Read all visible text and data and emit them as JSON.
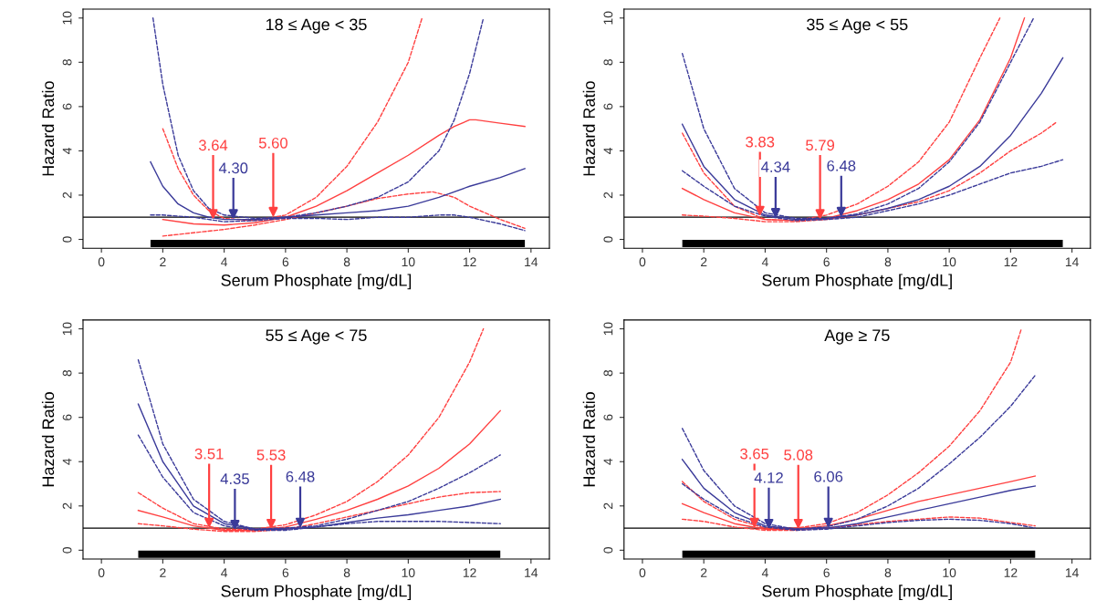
{
  "chart_data": [
    {
      "type": "line",
      "title": "18 ≤ Age < 35",
      "xlabel": "Serum Phosphate [mg/dL]",
      "ylabel": "Hazard Ratio",
      "xlim": [
        -0.6,
        14.6
      ],
      "ylim": [
        -0.4,
        10.4
      ],
      "xticks": [
        0,
        2,
        4,
        6,
        8,
        10,
        12,
        14
      ],
      "yticks": [
        0,
        2,
        4,
        6,
        8,
        10
      ],
      "grid": false,
      "series": [
        {
          "color": "#ff4040",
          "line_style": "solid",
          "x": [
            2,
            3,
            4,
            5,
            6,
            7,
            8,
            9,
            10,
            11,
            11.5,
            12,
            12.2,
            13,
            13.8
          ],
          "values": [
            0.9,
            0.7,
            0.65,
            0.75,
            1.0,
            1.5,
            2.2,
            3.0,
            3.8,
            4.7,
            5.1,
            5.4,
            5.4,
            5.25,
            5.1
          ]
        },
        {
          "color": "#ff4040",
          "line_style": "dashed",
          "x": [
            2,
            2.5,
            3,
            3.5,
            4,
            5,
            6,
            7,
            8,
            9,
            10,
            10.45
          ],
          "values": [
            5.0,
            3.2,
            2.0,
            1.3,
            0.95,
            0.85,
            1.1,
            1.9,
            3.3,
            5.3,
            8.0,
            10
          ]
        },
        {
          "color": "#ff4040",
          "line_style": "dashed",
          "x": [
            2,
            3,
            4,
            5,
            6,
            7,
            8,
            9,
            10,
            10.8,
            11.5,
            12,
            13,
            13.8
          ],
          "values": [
            0.15,
            0.3,
            0.45,
            0.65,
            0.9,
            1.2,
            1.5,
            1.85,
            2.05,
            2.15,
            1.9,
            1.5,
            0.9,
            0.5
          ]
        },
        {
          "color": "#3a3a99",
          "line_style": "solid",
          "x": [
            1.6,
            2,
            2.5,
            3,
            3.5,
            4,
            5,
            6,
            7,
            8,
            9,
            10,
            11,
            12,
            13,
            13.8
          ],
          "values": [
            3.5,
            2.4,
            1.6,
            1.2,
            1.0,
            0.9,
            0.9,
            1.0,
            1.1,
            1.2,
            1.3,
            1.5,
            1.9,
            2.4,
            2.8,
            3.2
          ]
        },
        {
          "color": "#3a3a99",
          "line_style": "dashed",
          "x": [
            1.68,
            2,
            2.5,
            3,
            3.5,
            4,
            5,
            6,
            7,
            8,
            9,
            10,
            11,
            11.5,
            12,
            12.45
          ],
          "values": [
            10,
            7,
            3.8,
            2.2,
            1.4,
            1.1,
            0.95,
            1.0,
            1.2,
            1.5,
            1.9,
            2.6,
            4.0,
            5.4,
            7.5,
            10
          ]
        },
        {
          "color": "#3a3a99",
          "line_style": "dashed",
          "x": [
            1.6,
            2,
            3,
            4,
            5,
            6,
            7,
            8,
            9,
            10,
            11,
            11.5,
            12,
            13,
            13.8
          ],
          "values": [
            1.1,
            1.1,
            1.0,
            0.8,
            0.85,
            0.95,
            0.95,
            0.9,
            1.0,
            1.0,
            1.1,
            1.1,
            1.0,
            0.7,
            0.4
          ]
        }
      ],
      "ref_lines": [
        {
          "axis": "y",
          "value": 1,
          "color": "#000000"
        }
      ],
      "annotations": [
        {
          "text": "3.64",
          "x": 3.64,
          "y": 0.9
        },
        {
          "text": "4.30",
          "x": 4.3,
          "y": 0.9
        },
        {
          "text": "5.60",
          "x": 5.6,
          "y": 1.0
        }
      ]
    },
    {
      "type": "line",
      "title": "35 ≤ Age < 55",
      "xlabel": "Serum Phosphate [mg/dL]",
      "ylabel": "Hazard Ratio",
      "xlim": [
        -0.6,
        14.6
      ],
      "ylim": [
        -0.4,
        10.4
      ],
      "xticks": [
        0,
        2,
        4,
        6,
        8,
        10,
        12,
        14
      ],
      "yticks": [
        0,
        2,
        4,
        6,
        8,
        10
      ],
      "grid": false,
      "series": [
        {
          "color": "#ff4040",
          "line_style": "solid",
          "x": [
            1.3,
            2,
            3,
            4,
            5,
            6,
            7,
            8,
            9,
            10,
            11,
            12,
            12.45
          ],
          "values": [
            2.3,
            1.8,
            1.2,
            0.9,
            0.85,
            0.95,
            1.3,
            1.8,
            2.5,
            3.6,
            5.4,
            8.2,
            10
          ]
        },
        {
          "color": "#ff4040",
          "line_style": "dashed",
          "x": [
            1.3,
            2,
            3,
            4,
            5,
            6,
            7,
            8,
            9,
            10,
            11,
            11.65
          ],
          "values": [
            4.8,
            3.0,
            1.5,
            0.9,
            0.85,
            1.1,
            1.6,
            2.4,
            3.5,
            5.3,
            8.2,
            10
          ]
        },
        {
          "color": "#ff4040",
          "line_style": "dashed",
          "x": [
            1.3,
            2,
            3,
            4,
            5,
            6,
            7,
            8,
            9,
            10,
            11,
            12,
            13,
            13.5
          ],
          "values": [
            1.1,
            1.05,
            0.95,
            0.8,
            0.8,
            0.9,
            1.1,
            1.4,
            1.7,
            2.2,
            3.0,
            4.0,
            4.8,
            5.3
          ]
        },
        {
          "color": "#3a3a99",
          "line_style": "solid",
          "x": [
            1.3,
            2,
            3,
            4,
            5,
            6,
            7,
            8,
            9,
            10,
            11,
            12,
            13,
            13.7
          ],
          "values": [
            5.2,
            3.3,
            1.8,
            1.1,
            0.9,
            0.95,
            1.1,
            1.4,
            1.8,
            2.4,
            3.3,
            4.7,
            6.6,
            8.2
          ]
        },
        {
          "color": "#3a3a99",
          "line_style": "dashed",
          "x": [
            1.3,
            2,
            3,
            4,
            5,
            6,
            7,
            8,
            9,
            10,
            11,
            12,
            12.75
          ],
          "values": [
            8.4,
            5.0,
            2.3,
            1.2,
            0.95,
            0.95,
            1.15,
            1.6,
            2.3,
            3.5,
            5.3,
            8.0,
            10
          ]
        },
        {
          "color": "#3a3a99",
          "line_style": "dashed",
          "x": [
            1.3,
            2,
            3,
            4,
            5,
            6,
            7,
            8,
            9,
            10,
            11,
            12,
            13,
            13.7
          ],
          "values": [
            3.1,
            2.4,
            1.5,
            1.05,
            0.85,
            0.9,
            1.0,
            1.3,
            1.6,
            2.0,
            2.5,
            3.0,
            3.3,
            3.6
          ]
        }
      ],
      "ref_lines": [
        {
          "axis": "y",
          "value": 1,
          "color": "#000000"
        }
      ],
      "annotations": [
        {
          "text": "3.83",
          "x": 3.83,
          "y": 1.05
        },
        {
          "text": "4.34",
          "x": 4.34,
          "y": 0.95
        },
        {
          "text": "5.79",
          "x": 5.79,
          "y": 0.9
        },
        {
          "text": "6.48",
          "x": 6.48,
          "y": 1.0
        }
      ]
    },
    {
      "type": "line",
      "title": "55 ≤ Age < 75",
      "xlabel": "Serum Phosphate [mg/dL]",
      "ylabel": "Hazard Ratio",
      "xlim": [
        -0.6,
        14.6
      ],
      "ylim": [
        -0.4,
        10.4
      ],
      "xticks": [
        0,
        2,
        4,
        6,
        8,
        10,
        12,
        14
      ],
      "yticks": [
        0,
        2,
        4,
        6,
        8,
        10
      ],
      "grid": false,
      "series": [
        {
          "color": "#ff4040",
          "line_style": "solid",
          "x": [
            1.2,
            2,
            3,
            4,
            5,
            6,
            7,
            8,
            9,
            10,
            11,
            12,
            13
          ],
          "values": [
            1.8,
            1.5,
            1.1,
            0.9,
            0.9,
            1.05,
            1.4,
            1.8,
            2.3,
            2.9,
            3.7,
            4.8,
            6.3
          ]
        },
        {
          "color": "#ff4040",
          "line_style": "dashed",
          "x": [
            1.2,
            2,
            3,
            4,
            5,
            6,
            7,
            8,
            9,
            10,
            11,
            12,
            12.45
          ],
          "values": [
            2.6,
            1.9,
            1.2,
            0.95,
            0.95,
            1.15,
            1.6,
            2.2,
            3.1,
            4.3,
            6.0,
            8.5,
            10
          ]
        },
        {
          "color": "#ff4040",
          "line_style": "dashed",
          "x": [
            1.2,
            2,
            3,
            4,
            5,
            6,
            7,
            8,
            9,
            10,
            11,
            12,
            13
          ],
          "values": [
            1.2,
            1.1,
            0.95,
            0.85,
            0.85,
            0.95,
            1.2,
            1.5,
            1.8,
            2.1,
            2.4,
            2.6,
            2.65
          ]
        },
        {
          "color": "#3a3a99",
          "line_style": "solid",
          "x": [
            1.2,
            2,
            3,
            4,
            5,
            6,
            7,
            8,
            9,
            10,
            11,
            12,
            13
          ],
          "values": [
            6.6,
            4.0,
            2.0,
            1.2,
            0.95,
            0.95,
            1.05,
            1.25,
            1.45,
            1.6,
            1.8,
            2.0,
            2.3
          ]
        },
        {
          "color": "#3a3a99",
          "line_style": "dashed",
          "x": [
            1.2,
            2,
            3,
            4,
            5,
            6,
            7,
            8,
            9,
            10,
            11,
            12,
            13
          ],
          "values": [
            8.6,
            4.8,
            2.3,
            1.3,
            0.95,
            1.0,
            1.1,
            1.4,
            1.8,
            2.2,
            2.8,
            3.5,
            4.3
          ]
        },
        {
          "color": "#3a3a99",
          "line_style": "dashed",
          "x": [
            1.2,
            2,
            3,
            4,
            5,
            6,
            7,
            8,
            9,
            10,
            11,
            12,
            13
          ],
          "values": [
            5.2,
            3.3,
            1.7,
            1.1,
            0.9,
            0.9,
            1.05,
            1.2,
            1.3,
            1.3,
            1.3,
            1.25,
            1.2
          ]
        }
      ],
      "ref_lines": [
        {
          "axis": "y",
          "value": 1,
          "color": "#000000"
        }
      ],
      "annotations": [
        {
          "text": "3.51",
          "x": 3.51,
          "y": 1.0
        },
        {
          "text": "4.35",
          "x": 4.35,
          "y": 0.9
        },
        {
          "text": "5.53",
          "x": 5.53,
          "y": 0.95
        },
        {
          "text": "6.48",
          "x": 6.48,
          "y": 1.0
        }
      ]
    },
    {
      "type": "line",
      "title": "Age ≥ 75",
      "xlabel": "Serum Phosphate [mg/dL]",
      "ylabel": "Hazard Ratio",
      "xlim": [
        -0.6,
        14.6
      ],
      "ylim": [
        -0.4,
        10.4
      ],
      "xticks": [
        0,
        2,
        4,
        6,
        8,
        10,
        12,
        14
      ],
      "yticks": [
        0,
        2,
        4,
        6,
        8,
        10
      ],
      "grid": false,
      "series": [
        {
          "color": "#ff4040",
          "line_style": "solid",
          "x": [
            1.3,
            2,
            3,
            4,
            5,
            6,
            7,
            8,
            9,
            10,
            11,
            12,
            12.8
          ],
          "values": [
            2.1,
            1.7,
            1.2,
            0.95,
            0.95,
            1.1,
            1.4,
            1.8,
            2.2,
            2.5,
            2.8,
            3.1,
            3.35
          ]
        },
        {
          "color": "#ff4040",
          "line_style": "dashed",
          "x": [
            1.3,
            2,
            3,
            4,
            5,
            6,
            7,
            8,
            9,
            10,
            11,
            12,
            12.35
          ],
          "values": [
            3.1,
            2.2,
            1.4,
            1.0,
            1.0,
            1.2,
            1.7,
            2.5,
            3.5,
            4.7,
            6.3,
            8.5,
            10
          ]
        },
        {
          "color": "#ff4040",
          "line_style": "dashed",
          "x": [
            1.3,
            2,
            3,
            4,
            5,
            6,
            7,
            8,
            9,
            10,
            11,
            12,
            12.8
          ],
          "values": [
            1.4,
            1.3,
            1.05,
            0.9,
            0.9,
            1.0,
            1.15,
            1.3,
            1.4,
            1.5,
            1.45,
            1.25,
            1.1
          ]
        },
        {
          "color": "#3a3a99",
          "line_style": "solid",
          "x": [
            1.3,
            2,
            3,
            4,
            5,
            6,
            7,
            8,
            9,
            10,
            11,
            12,
            12.8
          ],
          "values": [
            4.1,
            2.8,
            1.7,
            1.1,
            0.95,
            1.0,
            1.2,
            1.5,
            1.8,
            2.1,
            2.4,
            2.7,
            2.9
          ]
        },
        {
          "color": "#3a3a99",
          "line_style": "dashed",
          "x": [
            1.3,
            2,
            3,
            4,
            5,
            6,
            7,
            8,
            9,
            10,
            11,
            12,
            12.8
          ],
          "values": [
            5.5,
            3.6,
            2.0,
            1.2,
            0.95,
            1.05,
            1.4,
            2.0,
            2.8,
            3.9,
            5.1,
            6.5,
            7.9
          ]
        },
        {
          "color": "#3a3a99",
          "line_style": "dashed",
          "x": [
            1.3,
            2,
            3,
            4,
            5,
            6,
            7,
            8,
            9,
            10,
            11,
            12,
            12.8
          ],
          "values": [
            3.0,
            2.3,
            1.5,
            1.05,
            0.9,
            0.95,
            1.1,
            1.25,
            1.35,
            1.4,
            1.35,
            1.2,
            1.0
          ]
        }
      ],
      "ref_lines": [
        {
          "axis": "y",
          "value": 1,
          "color": "#000000"
        }
      ],
      "annotations": [
        {
          "text": "3.65",
          "x": 3.65,
          "y": 1.0
        },
        {
          "text": "4.12",
          "x": 4.12,
          "y": 0.95
        },
        {
          "text": "5.08",
          "x": 5.08,
          "y": 0.95
        },
        {
          "text": "6.06",
          "x": 6.06,
          "y": 1.0
        }
      ]
    }
  ]
}
